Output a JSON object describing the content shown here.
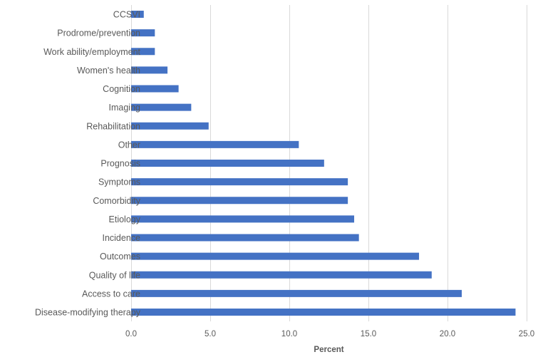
{
  "chart_data": {
    "type": "bar",
    "orientation": "horizontal",
    "title": "",
    "xlabel": "Percent",
    "ylabel": "",
    "xlim": [
      0,
      25
    ],
    "x_ticks": [
      0,
      5,
      10,
      15,
      20,
      25
    ],
    "x_tick_labels": [
      "0.0",
      "5.0",
      "10.0",
      "15.0",
      "20.0",
      "25.0"
    ],
    "grid": true,
    "legend": "none",
    "bar_color": "#4472C4",
    "categories": [
      "CCSVI",
      "Prodrome/prevention",
      "Work ability/employment",
      "Women's health",
      "Cognition",
      "Imaging",
      "Rehabilitation",
      "Other",
      "Prognosis",
      "Symptoms",
      "Comorbidity",
      "Etiology",
      "Incidence",
      "Outcomes",
      "Quality of life",
      "Access to care",
      "Disease-modifying therapy"
    ],
    "values": [
      0.8,
      1.5,
      1.5,
      2.3,
      3.0,
      3.8,
      4.9,
      10.6,
      12.2,
      13.7,
      13.7,
      14.1,
      14.4,
      18.2,
      19.0,
      20.9,
      24.3
    ]
  }
}
